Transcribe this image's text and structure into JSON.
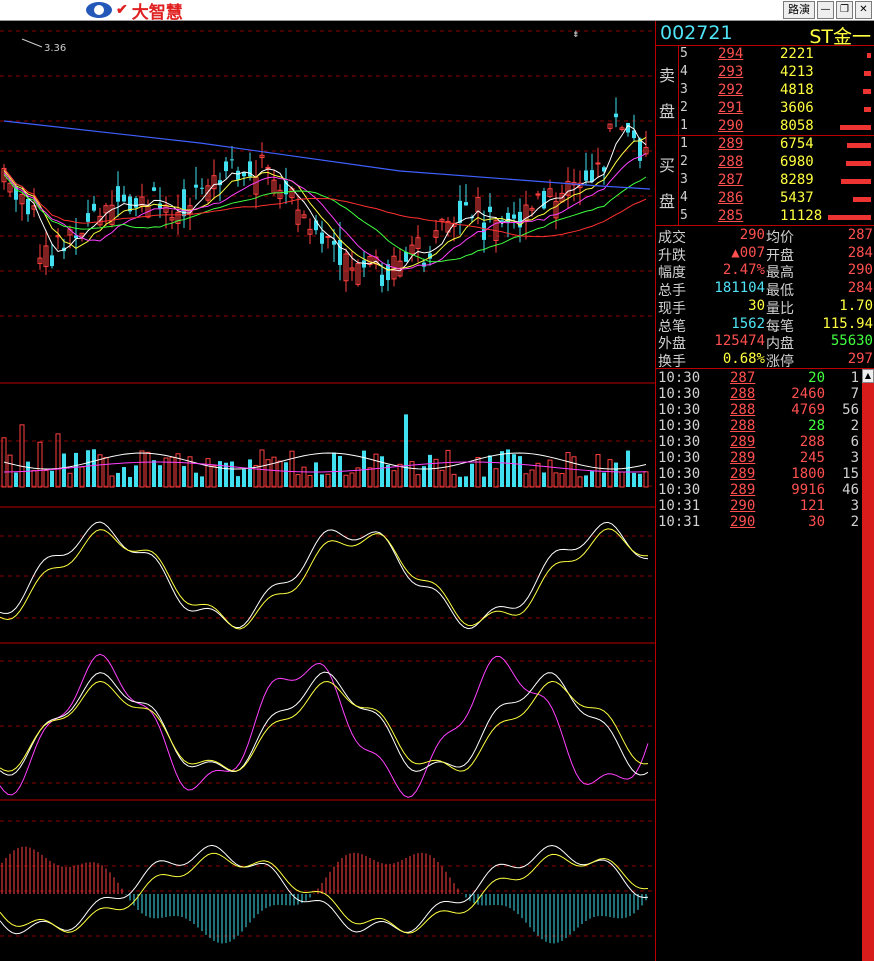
{
  "window": {
    "logo_mark": "✔",
    "brand": "大智慧",
    "route_button": "路演",
    "min": "—",
    "restore": "❐",
    "close": "✕"
  },
  "chart": {
    "peak_label": "3.36",
    "colors": {
      "up": "#ff4040",
      "down": "#40e0f0",
      "ma1": "#ffffff",
      "ma2": "#ffff40",
      "ma3": "#ff40ff",
      "ma4": "#40ff40",
      "ma5": "#4060ff",
      "ma6": "#ff3030",
      "grid": "#8b0000"
    }
  },
  "stock": {
    "code": "002721",
    "name": "ST金一"
  },
  "sell_label": [
    "卖",
    "盘"
  ],
  "buy_label": [
    "买",
    "盘"
  ],
  "sell": [
    {
      "level": "5",
      "price": "294",
      "volume": "2221",
      "bar": 0.06
    },
    {
      "level": "4",
      "price": "293",
      "volume": "4213",
      "bar": 0.12
    },
    {
      "level": "3",
      "price": "292",
      "volume": "4818",
      "bar": 0.14
    },
    {
      "level": "2",
      "price": "291",
      "volume": "3606",
      "bar": 0.11
    },
    {
      "level": "1",
      "price": "290",
      "volume": "8058",
      "bar": 0.52
    }
  ],
  "buy": [
    {
      "level": "1",
      "price": "289",
      "volume": "6754",
      "bar": 0.4
    },
    {
      "level": "2",
      "price": "288",
      "volume": "6980",
      "bar": 0.42
    },
    {
      "level": "3",
      "price": "287",
      "volume": "8289",
      "bar": 0.5
    },
    {
      "level": "4",
      "price": "286",
      "volume": "5437",
      "bar": 0.3
    },
    {
      "level": "5",
      "price": "285",
      "volume": "11128",
      "bar": 0.72
    }
  ],
  "stats": [
    {
      "l1": "成交",
      "v1": "290",
      "c1": "red",
      "l2": "均价",
      "v2": "287",
      "c2": "red"
    },
    {
      "l1": "升跌",
      "v1": "▲007",
      "c1": "red",
      "l2": "开盘",
      "v2": "284",
      "c2": "red"
    },
    {
      "l1": "幅度",
      "v1": "2.47%",
      "c1": "red",
      "l2": "最高",
      "v2": "290",
      "c2": "red"
    },
    {
      "l1": "总手",
      "v1": "181104",
      "c1": "cyan",
      "l2": "最低",
      "v2": "284",
      "c2": "red"
    },
    {
      "l1": "现手",
      "v1": "30",
      "c1": "yel",
      "l2": "量比",
      "v2": "1.70",
      "c2": "yel"
    },
    {
      "l1": "总笔",
      "v1": "1562",
      "c1": "cyan",
      "l2": "每笔",
      "v2": "115.94",
      "c2": "yel"
    },
    {
      "l1": "外盘",
      "v1": "125474",
      "c1": "red",
      "l2": "内盘",
      "v2": "55630",
      "c2": "grn"
    },
    {
      "l1": "换手",
      "v1": "0.68%",
      "c1": "yel",
      "l2": "涨停",
      "v2": "297",
      "c2": "red"
    }
  ],
  "ticks": [
    {
      "time": "10:30",
      "price": "287",
      "volume": "20",
      "vc": "grn",
      "count": "1"
    },
    {
      "time": "10:30",
      "price": "288",
      "volume": "2460",
      "vc": "red",
      "count": "7"
    },
    {
      "time": "10:30",
      "price": "288",
      "volume": "4769",
      "vc": "red",
      "count": "56"
    },
    {
      "time": "10:30",
      "price": "288",
      "volume": "28",
      "vc": "grn",
      "count": "2"
    },
    {
      "time": "10:30",
      "price": "289",
      "volume": "288",
      "vc": "red",
      "count": "6"
    },
    {
      "time": "10:30",
      "price": "289",
      "volume": "245",
      "vc": "red",
      "count": "3"
    },
    {
      "time": "10:30",
      "price": "289",
      "volume": "1800",
      "vc": "red",
      "count": "15"
    },
    {
      "time": "10:30",
      "price": "289",
      "volume": "9916",
      "vc": "red",
      "count": "46"
    },
    {
      "time": "10:31",
      "price": "290",
      "volume": "121",
      "vc": "red",
      "count": "3"
    },
    {
      "time": "10:31",
      "price": "290",
      "volume": "30",
      "vc": "red",
      "count": "2"
    }
  ]
}
